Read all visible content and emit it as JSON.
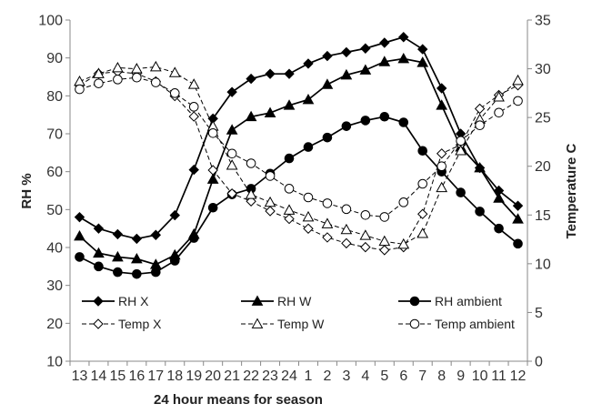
{
  "chart_data": {
    "type": "line",
    "x_label": "24 hour means for season",
    "categories": [
      "13",
      "14",
      "15",
      "16",
      "17",
      "18",
      "19",
      "20",
      "21",
      "22",
      "23",
      "24",
      "1",
      "2",
      "3",
      "4",
      "5",
      "6",
      "7",
      "8",
      "9",
      "10",
      "11",
      "12"
    ],
    "y_left": {
      "label": "RH %",
      "range": [
        10,
        100
      ],
      "ticks": [
        10,
        20,
        30,
        40,
        50,
        60,
        70,
        80,
        90,
        100
      ]
    },
    "y_right": {
      "label": "Temperature  C",
      "range": [
        0,
        35
      ],
      "ticks": [
        0,
        5,
        10,
        15,
        20,
        25,
        30,
        35
      ]
    },
    "series": [
      {
        "name": "RH X",
        "axis": "left",
        "style": "solid",
        "marker": "diamond",
        "values": [
          48,
          45,
          43.5,
          42.3,
          43.3,
          48.5,
          60.5,
          74,
          81,
          84.5,
          85.8,
          85.8,
          88.5,
          90.5,
          91.5,
          92.5,
          94,
          95.5,
          92.3,
          82,
          70,
          61,
          55,
          51
        ]
      },
      {
        "name": "RH W",
        "axis": "left",
        "style": "solid",
        "marker": "triangle",
        "values": [
          43,
          38.5,
          37.5,
          37,
          35.5,
          38,
          43.5,
          58,
          71,
          74.5,
          75.5,
          77.5,
          79,
          83,
          85.5,
          86.8,
          89,
          89.8,
          88.8,
          77.5,
          66.5,
          61,
          53,
          47.5
        ]
      },
      {
        "name": "RH ambient",
        "axis": "left",
        "style": "solid",
        "marker": "circle",
        "values": [
          37.5,
          35,
          33.5,
          33,
          33.5,
          36.5,
          42.5,
          50.5,
          54,
          55.5,
          59.5,
          63.5,
          66.5,
          69,
          72,
          73.5,
          74.5,
          73,
          65.5,
          60,
          54.5,
          49.5,
          45,
          41
        ]
      },
      {
        "name": "Temp X",
        "axis": "right",
        "style": "dashed",
        "marker": "diamond-open",
        "values": [
          28.3,
          29.5,
          29.7,
          29.5,
          28.7,
          27.2,
          25.1,
          19.6,
          17.2,
          16.4,
          15.4,
          14.6,
          13.6,
          12.7,
          12.1,
          11.7,
          11.4,
          11.7,
          15.1,
          21.3,
          22.2,
          25.9,
          27.3,
          28.3
        ]
      },
      {
        "name": "Temp W",
        "axis": "right",
        "style": "dashed",
        "marker": "triangle-open",
        "values": [
          28.7,
          29.5,
          30.1,
          30,
          30.2,
          29.6,
          28.4,
          24.1,
          20.1,
          17.1,
          16.3,
          15.5,
          14.8,
          14.1,
          13.5,
          12.9,
          12.3,
          12,
          13.1,
          17.8,
          21.6,
          24.8,
          27.1,
          28.8
        ]
      },
      {
        "name": "Temp ambient",
        "axis": "right",
        "style": "dashed",
        "marker": "circle-open",
        "values": [
          27.9,
          28.5,
          28.9,
          29.1,
          28.6,
          27.5,
          26.1,
          23.4,
          21.3,
          20.3,
          19,
          17.7,
          16.8,
          16.2,
          15.6,
          15,
          14.8,
          16.3,
          18.2,
          20,
          22.6,
          24.2,
          25.5,
          26.7
        ]
      }
    ],
    "legend": {
      "position": "bottom-inside",
      "columns": 3
    }
  }
}
